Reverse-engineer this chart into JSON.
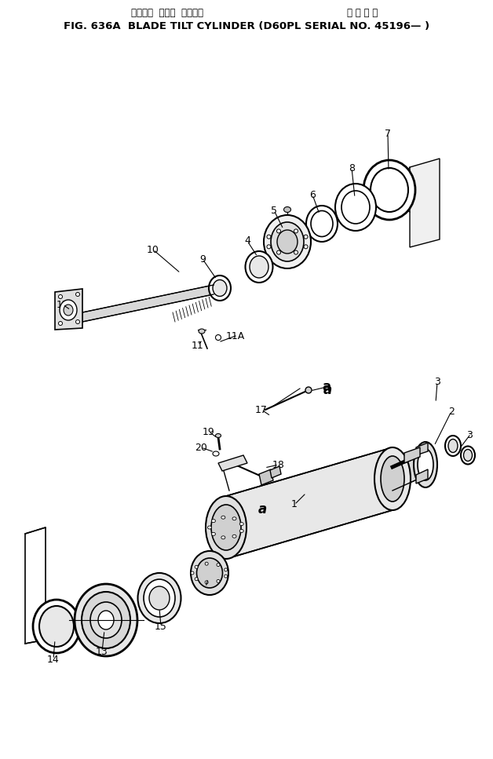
{
  "title_jp": "ブレード  チルト  シリンダ",
  "title_jp2": "適 用 号 機",
  "title_en": "FIG. 636A  BLADE TILT CYLINDER (D60PL SERIAL NO. 45196— )",
  "bg_color": "#ffffff"
}
